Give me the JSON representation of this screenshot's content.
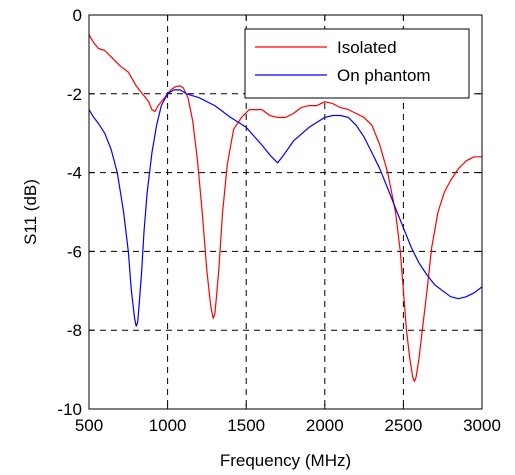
{
  "chart_data": {
    "type": "line",
    "xlabel": "Frequency (MHz)",
    "ylabel": "S11 (dB)",
    "xlim": [
      500,
      3000
    ],
    "ylim": [
      -10,
      0
    ],
    "xticks": [
      500,
      1000,
      1500,
      2000,
      2500,
      3000
    ],
    "yticks": [
      0,
      -2,
      -4,
      -6,
      -8,
      -10
    ],
    "grid": true,
    "legend_position": "top-right",
    "series": [
      {
        "name": "Isolated",
        "color": "#ff0000",
        "x": [
          500,
          530,
          560,
          600,
          650,
          700,
          750,
          800,
          840,
          880,
          900,
          920,
          940,
          960,
          980,
          1000,
          1020,
          1050,
          1080,
          1100,
          1130,
          1160,
          1190,
          1220,
          1250,
          1275,
          1290,
          1300,
          1310,
          1325,
          1350,
          1380,
          1420,
          1470,
          1520,
          1560,
          1600,
          1650,
          1700,
          1750,
          1800,
          1850,
          1900,
          1950,
          2000,
          2050,
          2100,
          2150,
          2200,
          2250,
          2300,
          2350,
          2400,
          2450,
          2480,
          2500,
          2520,
          2540,
          2560,
          2570,
          2580,
          2600,
          2620,
          2650,
          2680,
          2720,
          2760,
          2800,
          2850,
          2900,
          2950,
          3000
        ],
        "y": [
          -0.5,
          -0.7,
          -0.85,
          -0.9,
          -1.1,
          -1.3,
          -1.45,
          -1.8,
          -2.0,
          -2.2,
          -2.4,
          -2.45,
          -2.3,
          -2.2,
          -2.1,
          -2.0,
          -1.9,
          -1.82,
          -1.8,
          -1.85,
          -2.1,
          -2.7,
          -3.7,
          -5.0,
          -6.5,
          -7.4,
          -7.7,
          -7.6,
          -7.2,
          -6.5,
          -5.0,
          -3.8,
          -2.9,
          -2.6,
          -2.4,
          -2.4,
          -2.4,
          -2.55,
          -2.6,
          -2.6,
          -2.5,
          -2.35,
          -2.3,
          -2.3,
          -2.2,
          -2.25,
          -2.35,
          -2.4,
          -2.5,
          -2.6,
          -2.8,
          -3.3,
          -4.0,
          -5.0,
          -6.0,
          -7.0,
          -8.0,
          -8.7,
          -9.2,
          -9.3,
          -9.2,
          -8.7,
          -8.0,
          -7.0,
          -5.9,
          -5.0,
          -4.5,
          -4.2,
          -3.9,
          -3.7,
          -3.6,
          -3.6
        ]
      },
      {
        "name": "On phantom",
        "color": "#0000ff",
        "x": [
          500,
          530,
          560,
          600,
          640,
          680,
          720,
          750,
          770,
          790,
          800,
          810,
          820,
          835,
          850,
          870,
          900,
          930,
          960,
          1000,
          1040,
          1080,
          1120,
          1200,
          1300,
          1400,
          1500,
          1600,
          1650,
          1700,
          1730,
          1800,
          1900,
          2000,
          2050,
          2100,
          2150,
          2200,
          2250,
          2300,
          2350,
          2400,
          2450,
          2500,
          2550,
          2600,
          2650,
          2700,
          2750,
          2800,
          2850,
          2900,
          2950,
          3000
        ],
        "y": [
          -2.4,
          -2.6,
          -2.75,
          -3.0,
          -3.4,
          -4.0,
          -5.0,
          -6.0,
          -7.0,
          -7.7,
          -7.9,
          -7.8,
          -7.3,
          -6.5,
          -5.5,
          -4.5,
          -3.5,
          -2.8,
          -2.3,
          -2.0,
          -1.9,
          -1.9,
          -2.0,
          -2.1,
          -2.3,
          -2.6,
          -2.85,
          -3.3,
          -3.55,
          -3.75,
          -3.6,
          -3.2,
          -2.85,
          -2.6,
          -2.55,
          -2.55,
          -2.6,
          -2.8,
          -3.1,
          -3.5,
          -3.9,
          -4.4,
          -4.9,
          -5.4,
          -5.9,
          -6.3,
          -6.6,
          -6.85,
          -7.0,
          -7.15,
          -7.2,
          -7.15,
          -7.05,
          -6.9
        ]
      }
    ]
  }
}
